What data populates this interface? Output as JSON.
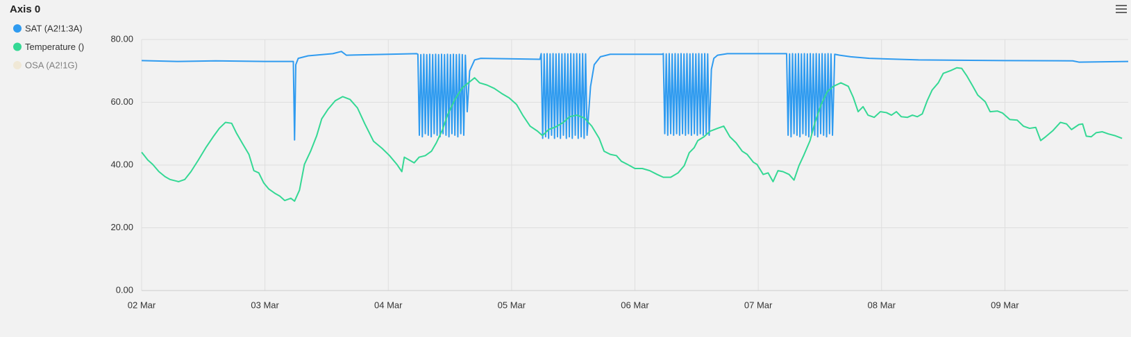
{
  "chart_data": {
    "type": "line",
    "title": "Axis 0",
    "xlim": [
      2,
      10
    ],
    "xticks": [
      {
        "value": 2,
        "label": "02 Mar"
      },
      {
        "value": 3,
        "label": "03 Mar"
      },
      {
        "value": 4,
        "label": "04 Mar"
      },
      {
        "value": 5,
        "label": "05 Mar"
      },
      {
        "value": 6,
        "label": "06 Mar"
      },
      {
        "value": 7,
        "label": "07 Mar"
      },
      {
        "value": 8,
        "label": "08 Mar"
      },
      {
        "value": 9,
        "label": "09 Mar"
      }
    ],
    "ylim": [
      0,
      80
    ],
    "yticks": [
      {
        "value": 0,
        "label": "0.00"
      },
      {
        "value": 20,
        "label": "20.00"
      },
      {
        "value": 40,
        "label": "40.00"
      },
      {
        "value": 60,
        "label": "60.00"
      },
      {
        "value": 80,
        "label": "80.00"
      }
    ],
    "grid": true,
    "series": [
      {
        "name": "SAT (A2!1:3A)",
        "color": "#2f9bf0",
        "visible": true,
        "x": [
          2.0,
          2.3,
          2.6,
          3.0,
          3.23,
          3.24,
          3.25,
          3.27,
          3.35,
          3.55,
          3.62,
          3.66,
          4.23,
          4.24,
          4.252,
          4.264,
          4.276,
          4.288,
          4.3,
          4.312,
          4.324,
          4.336,
          4.348,
          4.36,
          4.372,
          4.384,
          4.396,
          4.408,
          4.42,
          4.432,
          4.444,
          4.456,
          4.468,
          4.48,
          4.492,
          4.504,
          4.516,
          4.528,
          4.54,
          4.552,
          4.564,
          4.576,
          4.588,
          4.6,
          4.612,
          4.625,
          4.64,
          4.66,
          4.7,
          4.75,
          5.23,
          5.24,
          5.252,
          5.264,
          5.276,
          5.288,
          5.3,
          5.312,
          5.324,
          5.336,
          5.348,
          5.36,
          5.372,
          5.384,
          5.396,
          5.408,
          5.42,
          5.432,
          5.444,
          5.456,
          5.468,
          5.48,
          5.492,
          5.504,
          5.516,
          5.528,
          5.54,
          5.552,
          5.564,
          5.576,
          5.588,
          5.6,
          5.612,
          5.64,
          5.67,
          5.72,
          5.8,
          6.22,
          6.23,
          6.242,
          6.254,
          6.266,
          6.278,
          6.29,
          6.302,
          6.314,
          6.326,
          6.338,
          6.35,
          6.362,
          6.374,
          6.386,
          6.398,
          6.41,
          6.422,
          6.434,
          6.446,
          6.458,
          6.47,
          6.482,
          6.494,
          6.506,
          6.518,
          6.53,
          6.542,
          6.554,
          6.566,
          6.578,
          6.59,
          6.602,
          6.62,
          6.64,
          6.67,
          6.75,
          7.22,
          7.23,
          7.242,
          7.254,
          7.266,
          7.278,
          7.29,
          7.302,
          7.314,
          7.326,
          7.338,
          7.35,
          7.362,
          7.374,
          7.386,
          7.398,
          7.41,
          7.422,
          7.434,
          7.446,
          7.458,
          7.47,
          7.482,
          7.494,
          7.506,
          7.518,
          7.53,
          7.542,
          7.554,
          7.566,
          7.578,
          7.59,
          7.602,
          7.62,
          7.66,
          7.75,
          7.9,
          8.3,
          9.0,
          9.55,
          9.6,
          10.0
        ],
        "values": [
          73.3,
          73.0,
          73.2,
          73.0,
          73.0,
          48.0,
          72.0,
          74.0,
          74.8,
          75.5,
          76.2,
          75.0,
          75.5,
          75.3,
          49.5,
          75.2,
          49.0,
          75.3,
          50.0,
          75.2,
          49.5,
          75.3,
          49.0,
          75.2,
          50.0,
          75.3,
          49.5,
          75.2,
          49.0,
          75.3,
          50.0,
          75.2,
          49.5,
          75.3,
          49.0,
          75.2,
          50.0,
          75.3,
          49.5,
          75.2,
          49.0,
          75.3,
          50.0,
          75.2,
          49.5,
          75.0,
          57.0,
          70.0,
          73.5,
          74.0,
          73.7,
          75.5,
          48.5,
          75.4,
          49.0,
          75.5,
          48.5,
          75.4,
          49.5,
          75.5,
          48.5,
          75.4,
          49.0,
          75.5,
          48.5,
          75.4,
          49.5,
          75.5,
          48.5,
          75.4,
          49.0,
          75.5,
          48.5,
          75.4,
          49.5,
          75.5,
          48.5,
          75.4,
          49.0,
          75.5,
          48.5,
          75.4,
          49.5,
          65.0,
          72.0,
          74.5,
          75.3,
          75.3,
          75.5,
          50.0,
          75.4,
          49.5,
          75.5,
          50.0,
          75.4,
          49.5,
          75.5,
          50.0,
          75.4,
          49.5,
          75.5,
          50.0,
          75.4,
          49.5,
          75.5,
          50.0,
          75.4,
          49.5,
          75.5,
          50.0,
          75.4,
          49.5,
          75.5,
          50.0,
          75.4,
          49.5,
          75.5,
          50.0,
          75.4,
          49.5,
          70.5,
          74.0,
          75.0,
          75.5,
          75.5,
          75.5,
          49.5,
          75.4,
          49.0,
          75.5,
          50.0,
          75.4,
          49.5,
          75.5,
          49.0,
          75.4,
          50.0,
          75.5,
          49.5,
          75.4,
          49.0,
          75.5,
          50.0,
          75.4,
          49.5,
          75.5,
          49.0,
          75.4,
          50.0,
          75.5,
          49.5,
          75.4,
          49.0,
          75.5,
          50.0,
          75.4,
          49.5,
          75.3,
          75.0,
          74.5,
          74.0,
          73.5,
          73.3,
          73.2,
          72.8,
          73.0
        ]
      },
      {
        "name": "Temperature ()",
        "color": "#34d894",
        "visible": true,
        "x": [
          2.0,
          2.05,
          2.09,
          2.14,
          2.19,
          2.23,
          2.3,
          2.35,
          2.4,
          2.46,
          2.52,
          2.58,
          2.63,
          2.68,
          2.73,
          2.77,
          2.82,
          2.87,
          2.91,
          2.95,
          2.99,
          3.03,
          3.08,
          3.12,
          3.16,
          3.21,
          3.24,
          3.28,
          3.32,
          3.37,
          3.42,
          3.46,
          3.51,
          3.57,
          3.63,
          3.69,
          3.75,
          3.81,
          3.88,
          3.95,
          4.01,
          4.07,
          4.11,
          4.13,
          4.17,
          4.21,
          4.25,
          4.3,
          4.35,
          4.39,
          4.44,
          4.48,
          4.54,
          4.6,
          4.65,
          4.7,
          4.74,
          4.8,
          4.86,
          4.92,
          4.98,
          5.04,
          5.09,
          5.15,
          5.21,
          5.25,
          5.3,
          5.36,
          5.42,
          5.47,
          5.53,
          5.59,
          5.65,
          5.71,
          5.75,
          5.8,
          5.85,
          5.89,
          5.94,
          6.0,
          6.06,
          6.12,
          6.18,
          6.23,
          6.29,
          6.35,
          6.4,
          6.44,
          6.48,
          6.51,
          6.56,
          6.61,
          6.67,
          6.72,
          6.77,
          6.82,
          6.87,
          6.91,
          6.96,
          6.99,
          7.04,
          7.08,
          7.12,
          7.16,
          7.2,
          7.25,
          7.29,
          7.33,
          7.37,
          7.42,
          7.46,
          7.51,
          7.56,
          7.61,
          7.67,
          7.73,
          7.77,
          7.81,
          7.85,
          7.89,
          7.94,
          7.99,
          8.04,
          8.08,
          8.12,
          8.16,
          8.21,
          8.25,
          8.29,
          8.33,
          8.37,
          8.41,
          8.46,
          8.5,
          8.56,
          8.61,
          8.65,
          8.69,
          8.74,
          8.78,
          8.84,
          8.88,
          8.94,
          8.98,
          9.04,
          9.1,
          9.15,
          9.2,
          9.25,
          9.29,
          9.33,
          9.39,
          9.45,
          9.5,
          9.54,
          9.6,
          9.63,
          9.66,
          9.7,
          9.74,
          9.79,
          9.84,
          9.89,
          9.95
        ],
        "values": [
          44.1,
          41.6,
          40.2,
          37.9,
          36.3,
          35.4,
          34.7,
          35.4,
          37.9,
          41.6,
          45.5,
          49.0,
          51.7,
          53.6,
          53.3,
          50.1,
          46.7,
          43.4,
          38.2,
          37.5,
          34.3,
          32.4,
          31.0,
          30.1,
          28.7,
          29.4,
          28.5,
          32.0,
          40.2,
          44.4,
          49.4,
          54.7,
          57.7,
          60.5,
          61.8,
          60.9,
          58.2,
          53.1,
          47.6,
          45.3,
          43.0,
          40.2,
          37.9,
          42.5,
          41.6,
          40.7,
          42.5,
          43.0,
          44.4,
          47.1,
          51.3,
          55.9,
          60.9,
          64.6,
          66.2,
          67.8,
          66.2,
          65.5,
          64.4,
          62.8,
          61.4,
          59.3,
          55.9,
          52.4,
          50.8,
          49.4,
          51.3,
          52.2,
          53.6,
          55.4,
          55.9,
          55.0,
          52.4,
          48.5,
          44.4,
          43.4,
          43.0,
          41.2,
          40.2,
          38.9,
          38.9,
          38.2,
          37.0,
          36.1,
          36.1,
          37.5,
          39.8,
          43.9,
          45.5,
          47.8,
          49.0,
          50.8,
          51.7,
          52.4,
          49.0,
          47.1,
          44.4,
          43.4,
          40.9,
          40.2,
          37.0,
          37.5,
          34.7,
          38.2,
          37.9,
          37.0,
          35.2,
          39.8,
          43.2,
          47.8,
          53.6,
          59.3,
          63.4,
          65.1,
          66.2,
          65.1,
          61.6,
          57.0,
          58.6,
          55.9,
          55.2,
          57.0,
          56.7,
          55.9,
          57.0,
          55.4,
          55.2,
          55.9,
          55.4,
          56.3,
          60.5,
          63.9,
          66.2,
          69.2,
          70.1,
          71.0,
          70.8,
          68.5,
          65.1,
          62.3,
          60.2,
          57.0,
          57.2,
          56.6,
          54.5,
          54.3,
          52.4,
          51.7,
          52.0,
          47.8,
          49.0,
          51.0,
          53.6,
          53.1,
          51.3,
          52.9,
          53.1,
          49.2,
          49.0,
          50.3,
          50.6,
          49.9,
          49.4,
          48.5
        ]
      },
      {
        "name": "OSA (A2!1G)",
        "color": "#f0e2c4",
        "visible": false,
        "x": [],
        "values": []
      }
    ]
  }
}
